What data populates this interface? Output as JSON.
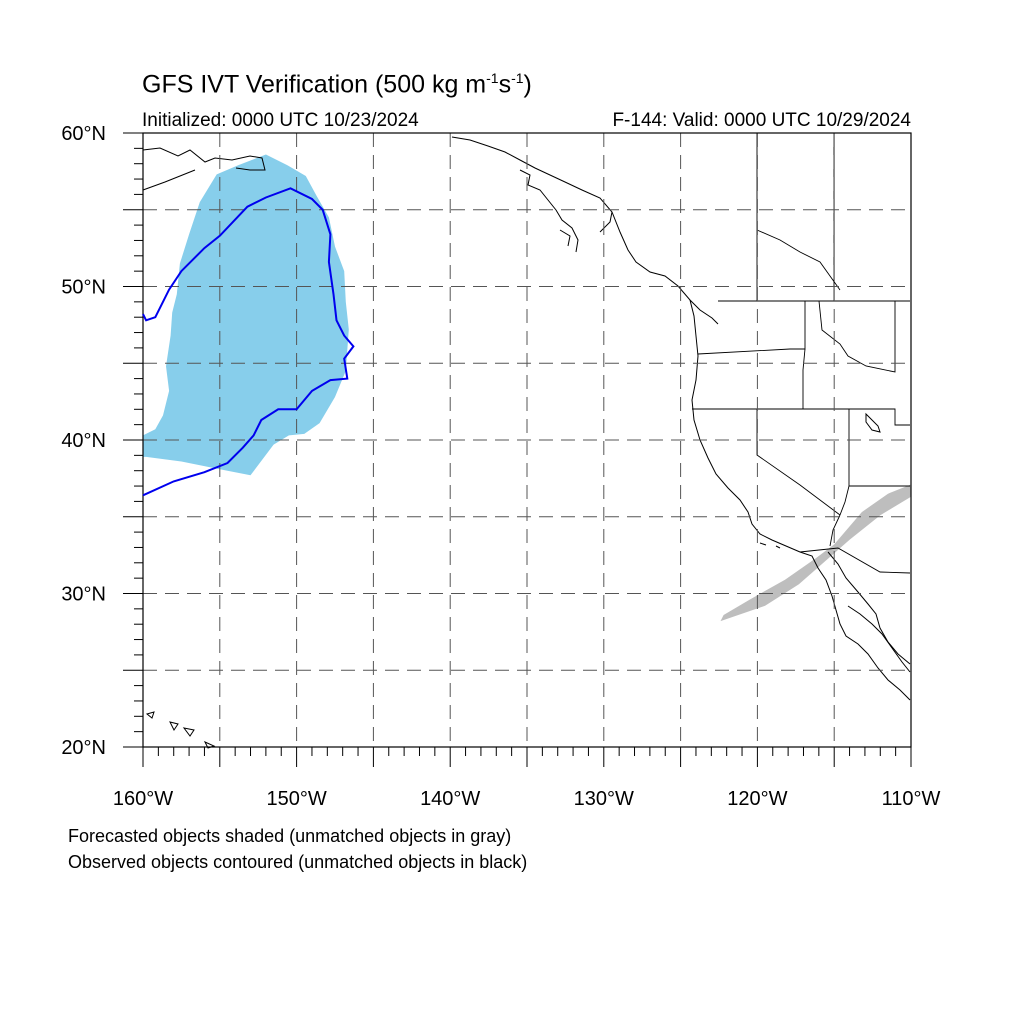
{
  "title": {
    "main": "GFS IVT Verification (500 kg m",
    "sup1": "-1",
    "mid": "s",
    "sup2": "-1",
    "end": ")"
  },
  "initialized": "Initialized: 0000 UTC 10/23/2024",
  "valid": "F-144: Valid: 0000 UTC 10/29/2024",
  "notes": {
    "line1": "Forecasted objects shaded (unmatched objects in gray)",
    "line2": "Observed objects contoured (unmatched objects in black)"
  },
  "map": {
    "lon_range": [
      -160,
      -110
    ],
    "lat_range": [
      20,
      60
    ],
    "gridline_style": "dashed",
    "lat_labels": [
      {
        "lat": 60,
        "text": "60°N"
      },
      {
        "lat": 50,
        "text": "50°N"
      },
      {
        "lat": 40,
        "text": "40°N"
      },
      {
        "lat": 30,
        "text": "30°N"
      },
      {
        "lat": 20,
        "text": "20°N"
      }
    ],
    "lon_labels": [
      {
        "lon": -160,
        "text": "160°W"
      },
      {
        "lon": -150,
        "text": "150°W"
      },
      {
        "lon": -140,
        "text": "140°W"
      },
      {
        "lon": -130,
        "text": "130°W"
      },
      {
        "lon": -120,
        "text": "120°W"
      },
      {
        "lon": -110,
        "text": "110°W"
      }
    ],
    "colors": {
      "matched_forecast_fill": "#87ceeb",
      "unmatched_forecast_fill": "#bebebe",
      "matched_observed_contour": "#0000ee",
      "coastline": "#000000",
      "grid": "#555555"
    },
    "objects": {
      "forecast_matched": [
        [
          -159.8,
          38.9
        ],
        [
          -157.5,
          38.6
        ],
        [
          -155,
          38.1
        ],
        [
          -153,
          37.7
        ],
        [
          -151.5,
          39.7
        ],
        [
          -150.5,
          40.3
        ],
        [
          -149.5,
          40.4
        ],
        [
          -148.5,
          41.1
        ],
        [
          -147.5,
          42.8
        ],
        [
          -146.8,
          44.5
        ],
        [
          -146.6,
          47.2
        ],
        [
          -146.8,
          49.0
        ],
        [
          -146.9,
          51.0
        ],
        [
          -147.5,
          52.6
        ],
        [
          -147.9,
          54.5
        ],
        [
          -148.7,
          55.9
        ],
        [
          -149.4,
          57.2
        ],
        [
          -150.6,
          57.9
        ],
        [
          -152,
          58.6
        ],
        [
          -153.8,
          57.9
        ],
        [
          -155.2,
          57.3
        ],
        [
          -156.3,
          55.5
        ],
        [
          -157.0,
          53.4
        ],
        [
          -157.6,
          51.5
        ],
        [
          -157.8,
          49.5
        ],
        [
          -158.1,
          48.3
        ],
        [
          -158.2,
          46.8
        ],
        [
          -158.5,
          44.8
        ],
        [
          -158.3,
          43.2
        ],
        [
          -158.7,
          41.6
        ],
        [
          -159.2,
          40.7
        ],
        [
          -160,
          40.3
        ],
        [
          -160,
          38.9
        ]
      ],
      "forecast_unmatched": [
        [
          -122.4,
          28.2
        ],
        [
          -119.5,
          29.2
        ],
        [
          -117.3,
          30.6
        ],
        [
          -115.7,
          32.0
        ],
        [
          -114.0,
          33.5
        ],
        [
          -112.0,
          35.1
        ],
        [
          -110,
          36.3
        ],
        [
          -110,
          37.1
        ],
        [
          -111.5,
          36.5
        ],
        [
          -113.2,
          35.3
        ],
        [
          -115.0,
          33.2
        ],
        [
          -116.2,
          32.3
        ],
        [
          -118.2,
          30.9
        ],
        [
          -120.5,
          29.6
        ],
        [
          -122.2,
          28.6
        ],
        [
          -122.4,
          28.2
        ]
      ],
      "observed_matched": [
        [
          -160,
          36.4
        ],
        [
          -158,
          37.3
        ],
        [
          -156,
          37.9
        ],
        [
          -154.5,
          38.5
        ],
        [
          -153.5,
          39.5
        ],
        [
          -152.8,
          40.3
        ],
        [
          -152.3,
          41.3
        ],
        [
          -151.2,
          42.0
        ],
        [
          -150,
          42.0
        ],
        [
          -149,
          43.2
        ],
        [
          -147.8,
          43.9
        ],
        [
          -146.7,
          44.0
        ],
        [
          -146.9,
          45.3
        ],
        [
          -146.3,
          46.1
        ],
        [
          -146.9,
          46.8
        ],
        [
          -147.4,
          47.8
        ],
        [
          -147.6,
          49.5
        ],
        [
          -147.9,
          51.6
        ],
        [
          -147.8,
          53.4
        ],
        [
          -148.3,
          55.0
        ],
        [
          -149.0,
          55.7
        ],
        [
          -150.4,
          56.4
        ],
        [
          -152,
          55.8
        ],
        [
          -153.2,
          55.2
        ],
        [
          -155.0,
          53.3
        ],
        [
          -156.0,
          52.5
        ],
        [
          -157.5,
          51.0
        ],
        [
          -158.3,
          49.8
        ],
        [
          -159.2,
          48.0
        ],
        [
          -159.8,
          47.8
        ],
        [
          -160,
          48.2
        ]
      ]
    }
  }
}
